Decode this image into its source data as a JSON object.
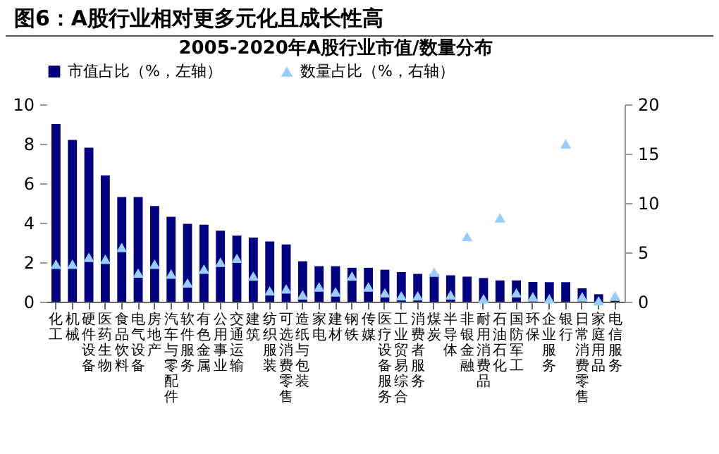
{
  "chart_data": {
    "type": "bar",
    "title": "图6：A股行业相对更多元化且成长性高",
    "subtitle": "2005-2020年A股行业市值/数量分布",
    "categories": [
      "化工",
      "机械",
      "硬件设备",
      "医药生物",
      "食品饮料",
      "电气设备",
      "房地产",
      "汽车与零配件",
      "软件服务",
      "有色金属",
      "公用事业",
      "交通运输",
      "建筑",
      "纺织服装",
      "可选消费零售",
      "造纸与包装",
      "家电",
      "建材",
      "钢铁",
      "传媒",
      "医疗设备服务",
      "工业贸易综合",
      "消费者服务",
      "煤炭",
      "半导体",
      "非银金融",
      "耐用消费品",
      "石油石化",
      "国防军工",
      "环保",
      "企业服务",
      "银行",
      "日常消费零售",
      "家庭用品",
      "电信服务"
    ],
    "series": [
      {
        "name": "市值占比（%，左轴）",
        "color": "#000080",
        "values": [
          9.0,
          8.2,
          7.8,
          6.4,
          5.3,
          5.3,
          4.85,
          4.3,
          3.95,
          3.9,
          3.6,
          3.35,
          3.25,
          3.05,
          2.9,
          2.05,
          1.8,
          1.8,
          1.72,
          1.72,
          1.62,
          1.5,
          1.41,
          1.4,
          1.34,
          1.27,
          1.2,
          1.08,
          1.08,
          1.0,
          0.99,
          0.99,
          0.68,
          0.38,
          0.05
        ]
      },
      {
        "name": "数量占比（%，右轴）",
        "type": "scatter",
        "axis": "y2",
        "marker": "triangle",
        "color": "#99ccff",
        "values": [
          3.8,
          3.8,
          4.5,
          4.3,
          5.5,
          2.9,
          3.8,
          2.8,
          1.9,
          3.3,
          4.0,
          4.4,
          2.6,
          1.1,
          1.3,
          0.7,
          1.5,
          1.0,
          2.6,
          1.5,
          0.9,
          0.6,
          0.6,
          3.0,
          0.7,
          6.6,
          0.3,
          8.5,
          0.9,
          0.5,
          0.3,
          16.0,
          0.5,
          0.1,
          0.6
        ]
      }
    ],
    "ylim": [
      0,
      10
    ],
    "yticks": [
      0,
      2,
      4,
      6,
      8,
      10
    ],
    "y2lim": [
      0,
      20
    ],
    "y2ticks": [
      0,
      5,
      10,
      15,
      20
    ],
    "legend": "top",
    "grid": false
  }
}
